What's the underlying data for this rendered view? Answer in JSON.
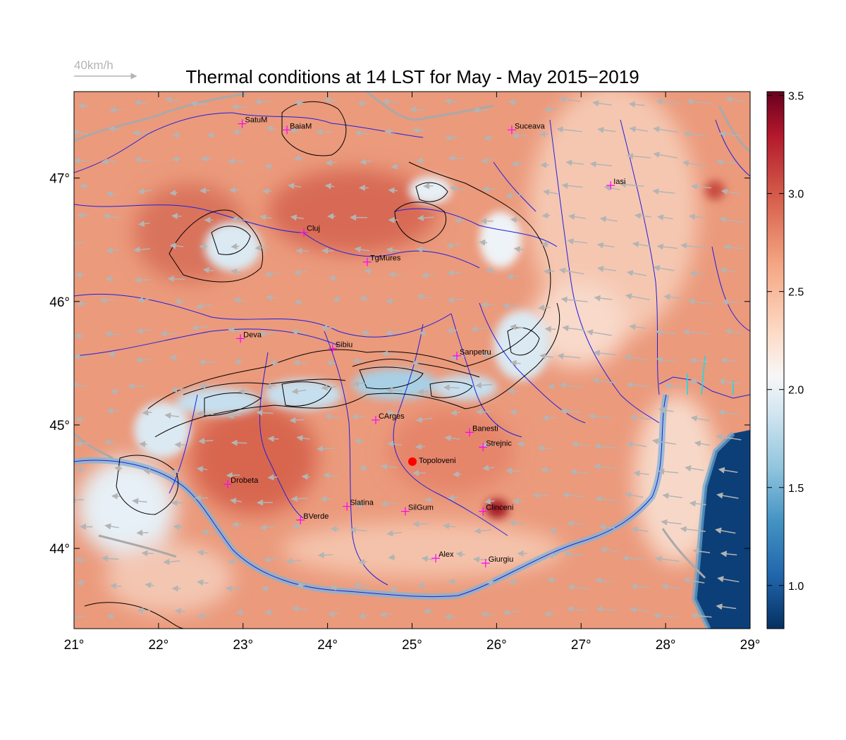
{
  "title": "Thermal conditions at 14 LST for May - May  2015−2019",
  "wind_reference": {
    "label": "40km/h",
    "color": "#b4b4b4"
  },
  "map": {
    "x_ticks": [
      "21°",
      "22°",
      "23°",
      "24°",
      "25°",
      "26°",
      "27°",
      "28°",
      "29°"
    ],
    "y_ticks": [
      "47°",
      "46°",
      "45°",
      "44°"
    ],
    "colors": {
      "river": "#1f1fe0",
      "border": "#a9a9a9",
      "coast": "#00e5ee",
      "contour": "#000000",
      "marker": "#ff00ff",
      "site": "#ff0000"
    }
  },
  "colorbar": {
    "ticks": [
      "3.5",
      "3.0",
      "2.5",
      "2.0",
      "1.5",
      "1.0"
    ],
    "colors": [
      "#053061",
      "#2166ac",
      "#4393c3",
      "#92c5de",
      "#d1e5f0",
      "#f7f7f7",
      "#fddbc7",
      "#f4a582",
      "#d6604d",
      "#b2182b",
      "#67001f"
    ]
  },
  "cities": [
    {
      "name": "SatuM"
    },
    {
      "name": "BaiaM"
    },
    {
      "name": "Suceava"
    },
    {
      "name": "Iasi"
    },
    {
      "name": "Cluj"
    },
    {
      "name": "TgMures"
    },
    {
      "name": "Deva"
    },
    {
      "name": "Sibiu"
    },
    {
      "name": "Sanpetru"
    },
    {
      "name": "CArges"
    },
    {
      "name": "Banesti"
    },
    {
      "name": "Strejnic"
    },
    {
      "name": "Drobeta"
    },
    {
      "name": "Slatina"
    },
    {
      "name": "SilGum"
    },
    {
      "name": "Clinceni"
    },
    {
      "name": "BVerde"
    },
    {
      "name": "Alex"
    },
    {
      "name": "Giurgiu"
    }
  ],
  "site": {
    "name": "Topoloveni"
  }
}
